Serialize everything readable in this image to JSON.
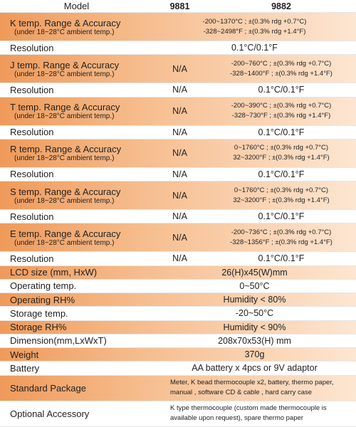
{
  "header": {
    "label": "Model",
    "models": [
      "9881",
      "9882"
    ]
  },
  "rows": [
    {
      "label": "K temp. Range & Accuracy",
      "note": "(under 18~28°C ambient temp.)",
      "shaded": true,
      "cells": [
        [
          "-200~1370°C ; ±(0.3% rdg +0.7°C)",
          "-328~2498°F ; ±(0.3% rdg +1.4°F)"
        ]
      ]
    },
    {
      "label": "Resolution",
      "shaded": false,
      "cells": [
        [
          "0.1°C/0.1°F"
        ]
      ]
    },
    {
      "label": "J temp. Range & Accuracy",
      "note": "(under 18~28°C ambient temp.)",
      "shaded": true,
      "cells": [
        [
          "N/A"
        ],
        [
          "-200~760°C ; ±(0.3% rdg +0.7°C)",
          "-328~1400°F ; ±(0.3% rdg +1.4°F)"
        ]
      ]
    },
    {
      "label": "Resolution",
      "shaded": false,
      "cells": [
        [
          "N/A"
        ],
        [
          "0.1°C/0.1°F"
        ]
      ]
    },
    {
      "label": "T temp. Range & Accuracy",
      "note": "(under 18~28°C ambient temp.)",
      "shaded": true,
      "cells": [
        [
          "N/A"
        ],
        [
          "-200~390°C ; ±(0.3% rdg +0.7°C)",
          "-328~730°F ; ±(0.3% rdg +1.4°F)"
        ]
      ]
    },
    {
      "label": "Resolution",
      "shaded": false,
      "cells": [
        [
          "N/A"
        ],
        [
          "0.1°C/0.1°F"
        ]
      ]
    },
    {
      "label": "R temp. Range & Accuracy",
      "note": "(under 18~28°C ambient temp.)",
      "shaded": true,
      "cells": [
        [
          "N/A"
        ],
        [
          "0~1760°C ; ±(0.3% rdg +0.7°C)",
          "32~3200°F ; ±(0.3% rdg +1.4°F)"
        ]
      ]
    },
    {
      "label": "Resolution",
      "shaded": false,
      "cells": [
        [
          "N/A"
        ],
        [
          "0.1°C/0.1°F"
        ]
      ]
    },
    {
      "label": "S temp. Range & Accuracy",
      "note": "(under 18~28°C ambient temp.)",
      "shaded": true,
      "cells": [
        [
          "N/A"
        ],
        [
          "0~1760°C ; ±(0.3% rdg +0.7°C)",
          "32~3200°F ; ±(0.3% rdg +1.4°F)"
        ]
      ]
    },
    {
      "label": "Resolution",
      "shaded": false,
      "cells": [
        [
          "N/A"
        ],
        [
          "0.1°C/0.1°F"
        ]
      ]
    },
    {
      "label": "E temp. Range & Accuracy",
      "note": "(under 18~28°C ambient temp.)",
      "shaded": true,
      "cells": [
        [
          "N/A"
        ],
        [
          "-200~736°C ; ±(0.3% rdg +0.7°C)",
          "-328~1356°F ; ±(0.3% rdg +1.4°F)"
        ]
      ]
    },
    {
      "label": "Resolution",
      "shaded": false,
      "cells": [
        [
          "N/A"
        ],
        [
          "0.1°C/0.1°F"
        ]
      ]
    },
    {
      "label": "LCD size (mm, HxW)",
      "shaded": true,
      "cells": [
        [
          "26(H)x45(W)mm"
        ]
      ]
    },
    {
      "label": "Operating temp.",
      "shaded": false,
      "cells": [
        [
          "0~50°C"
        ]
      ]
    },
    {
      "label": "Operating RH%",
      "shaded": true,
      "cells": [
        [
          "Humidity < 80%"
        ]
      ]
    },
    {
      "label": "Storage temp.",
      "shaded": false,
      "cells": [
        [
          "-20~50°C"
        ]
      ]
    },
    {
      "label": "Storage RH%",
      "shaded": true,
      "cells": [
        [
          "Humidity < 90%"
        ]
      ]
    },
    {
      "label": "Dimension(mm,LxWxT)",
      "shaded": false,
      "cells": [
        [
          "208x70x53(H) mm"
        ]
      ]
    },
    {
      "label": "Weight",
      "shaded": true,
      "cells": [
        [
          "370g"
        ]
      ]
    },
    {
      "label": "Battery",
      "shaded": false,
      "cells": [
        [
          "AA battery x 4pcs or 9V adaptor"
        ]
      ]
    },
    {
      "label": "Standard Package",
      "shaded": true,
      "cells": [
        [
          "Meter, K bead thermocouple x2, battery, thermo paper,",
          "manual , software CD & cable , hard carry case"
        ]
      ]
    },
    {
      "label": "Optional Accessory",
      "shaded": false,
      "cells": [
        [
          "K type thermocouple (custom made thermocouple is",
          "available upon request), spare thermo paper"
        ]
      ]
    }
  ]
}
